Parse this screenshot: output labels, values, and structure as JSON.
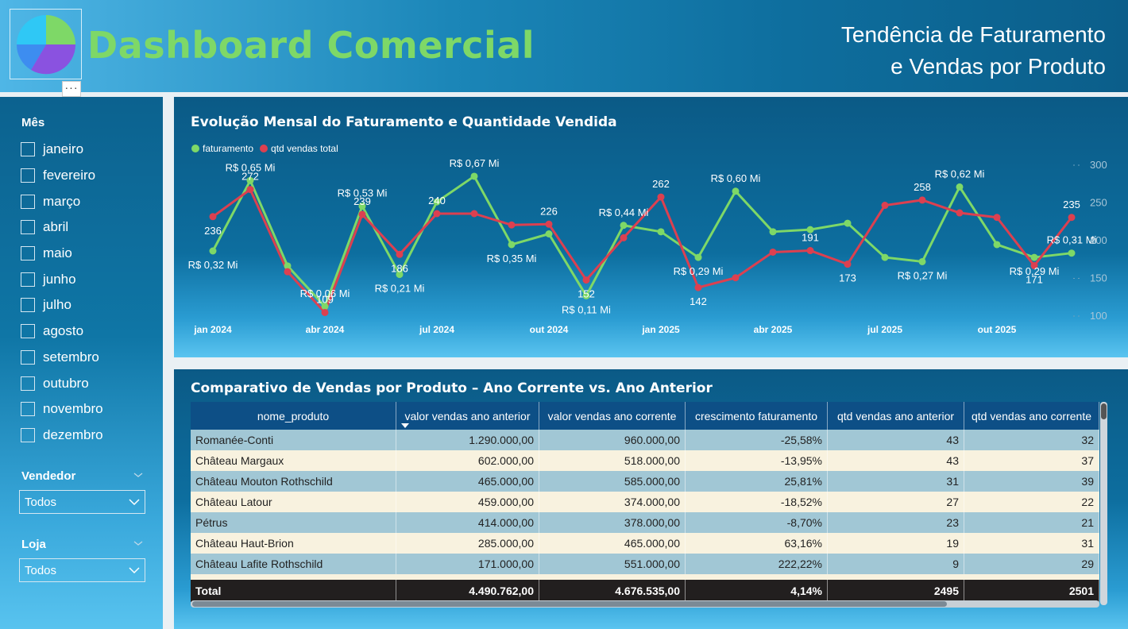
{
  "header": {
    "title": "Dashboard Comercial",
    "subtitle_line1": "Tendência de Faturamento",
    "subtitle_line2": "e Vendas por Produto",
    "more_label": "···",
    "logo_icon": "pie-chart-icon"
  },
  "sidebar": {
    "month_title": "Mês",
    "months": [
      "janeiro",
      "fevereiro",
      "março",
      "abril",
      "maio",
      "junho",
      "julho",
      "agosto",
      "setembro",
      "outubro",
      "novembro",
      "dezembro"
    ],
    "vendedor_title": "Vendedor",
    "vendedor_value": "Todos",
    "loja_title": "Loja",
    "loja_value": "Todos"
  },
  "chart": {
    "title": "Evolução Mensal do Faturamento e Quantidade Vendida"
  },
  "chart_data": {
    "type": "line",
    "title": "Evolução Mensal do Faturamento e Quantidade Vendida",
    "x": [
      "jan 2024",
      "fev 2024",
      "mar 2024",
      "abr 2024",
      "mai 2024",
      "jun 2024",
      "jul 2024",
      "ago 2024",
      "set 2024",
      "out 2024",
      "nov 2024",
      "dez 2024",
      "jan 2025",
      "fev 2025",
      "mar 2025",
      "abr 2025",
      "mai 2025",
      "jun 2025",
      "jul 2025",
      "ago 2025",
      "set 2025",
      "out 2025",
      "nov 2025",
      "dez 2025"
    ],
    "x_tick_labels": [
      "jan 2024",
      "abr 2024",
      "jul 2024",
      "out 2024",
      "jan 2025",
      "abr 2025",
      "jul 2025",
      "out 2025"
    ],
    "x_tick_index": [
      0,
      3,
      6,
      9,
      12,
      15,
      18,
      21
    ],
    "series": [
      {
        "name": "faturamento",
        "color": "#7ed867",
        "unit": "R$ Mi",
        "values": [
          0.32,
          0.65,
          0.25,
          0.06,
          0.53,
          0.21,
          0.55,
          0.67,
          0.35,
          0.4,
          0.11,
          0.44,
          0.41,
          0.29,
          0.6,
          0.41,
          0.42,
          0.45,
          0.29,
          0.27,
          0.62,
          0.35,
          0.29,
          0.31
        ],
        "labels": {
          "0": "R$ 0,32 Mi",
          "1": "R$ 0,65 Mi",
          "3": "R$ 0,06 Mi",
          "4": "R$ 0,53 Mi",
          "5": "R$ 0,21 Mi",
          "7": "R$ 0,67 Mi",
          "8": "R$ 0,35 Mi",
          "10": "R$ 0,11 Mi",
          "11": "R$ 0,44 Mi",
          "13": "R$ 0,29 Mi",
          "14": "R$ 0,60 Mi",
          "19": "R$ 0,27 Mi",
          "20": "R$ 0,62 Mi",
          "22": "R$ 0,29 Mi",
          "23": "R$ 0,31 Mi"
        }
      },
      {
        "name": "qtd vendas total",
        "color": "#dc4050",
        "values": [
          236,
          272,
          163,
          109,
          239,
          186,
          240,
          240,
          225,
          226,
          152,
          208,
          262,
          142,
          155,
          189,
          191,
          173,
          251,
          258,
          241,
          235,
          171,
          235
        ],
        "labels": {
          "0": "236",
          "1": "272",
          "3": "109",
          "4": "239",
          "5": "186",
          "6": "240",
          "9": "226",
          "10": "152",
          "12": "262",
          "13": "142",
          "16": "191",
          "17": "173",
          "19": "258",
          "22": "171",
          "23": "235"
        }
      }
    ],
    "y2_ticks": [
      300,
      250,
      200,
      150,
      100
    ],
    "y2lim": [
      100,
      300
    ],
    "y1lim": [
      0,
      0.8
    ],
    "legend": "top-left"
  },
  "table": {
    "title": "Comparativo de Vendas por Produto – Ano Corrente vs. Ano Anterior",
    "columns": [
      "nome_produto",
      "valor vendas ano anterior",
      "valor vendas ano corrente",
      "crescimento faturamento",
      "qtd vendas ano anterior",
      "qtd vendas ano corrente"
    ],
    "rows": [
      [
        "Romanée-Conti",
        "1.290.000,00",
        "960.000,00",
        "-25,58%",
        "43",
        "32"
      ],
      [
        "Château Margaux",
        "602.000,00",
        "518.000,00",
        "-13,95%",
        "43",
        "37"
      ],
      [
        "Château Mouton Rothschild",
        "465.000,00",
        "585.000,00",
        "25,81%",
        "31",
        "39"
      ],
      [
        "Château Latour",
        "459.000,00",
        "374.000,00",
        "-18,52%",
        "27",
        "22"
      ],
      [
        "Pétrus",
        "414.000,00",
        "378.000,00",
        "-8,70%",
        "23",
        "21"
      ],
      [
        "Château Haut-Brion",
        "285.000,00",
        "465.000,00",
        "63,16%",
        "19",
        "31"
      ],
      [
        "Château Lafite Rothschild",
        "171.000,00",
        "551.000,00",
        "222,22%",
        "9",
        "29"
      ]
    ],
    "total": [
      "Total",
      "4.490.762,00",
      "4.676.535,00",
      "4,14%",
      "2495",
      "2501"
    ]
  }
}
